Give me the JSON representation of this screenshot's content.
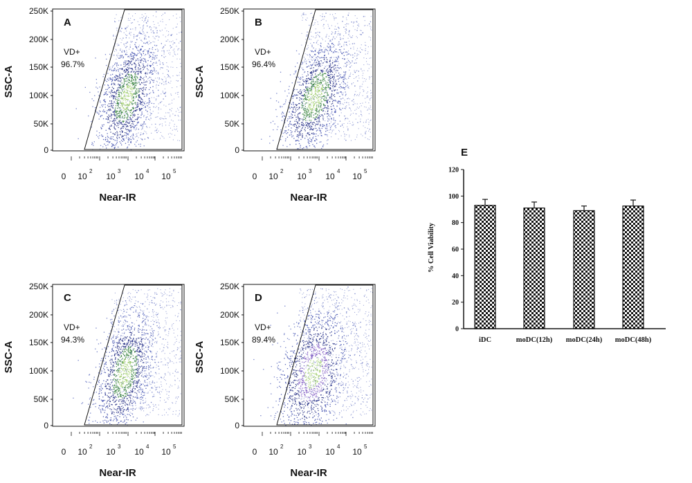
{
  "chart_data": [
    {
      "panel": "A",
      "type": "scatter",
      "xlabel": "Near-IR",
      "ylabel": "SSC-A",
      "x_tick_labels": [
        "0",
        "10",
        "2",
        "10",
        "3",
        "10",
        "4",
        "10",
        "5"
      ],
      "y_tick_labels": [
        "0",
        "50K",
        "100K",
        "150K",
        "200K",
        "250K"
      ],
      "ylim": [
        0,
        262144
      ],
      "gate": {
        "name": "VD+",
        "percent": "96.7%"
      },
      "colors": [
        "#1a237e",
        "#3949ab",
        "#5c6bc0",
        "#2e7d32",
        "#9ccc65"
      ]
    },
    {
      "panel": "B",
      "type": "scatter",
      "xlabel": "Near-IR",
      "ylabel": "SSC-A",
      "x_tick_labels": [
        "0",
        "10",
        "2",
        "10",
        "3",
        "10",
        "4",
        "10",
        "5"
      ],
      "y_tick_labels": [
        "0",
        "50K",
        "100K",
        "150K",
        "200K",
        "250K"
      ],
      "ylim": [
        0,
        262144
      ],
      "gate": {
        "name": "VD+",
        "percent": "96.4%"
      },
      "colors": [
        "#1a237e",
        "#3949ab",
        "#5c6bc0",
        "#2e7d32",
        "#9ccc65"
      ]
    },
    {
      "panel": "C",
      "type": "scatter",
      "xlabel": "Near-IR",
      "ylabel": "SSC-A",
      "x_tick_labels": [
        "0",
        "10",
        "2",
        "10",
        "3",
        "10",
        "4",
        "10",
        "5"
      ],
      "y_tick_labels": [
        "0",
        "50K",
        "100K",
        "150K",
        "200K",
        "250K"
      ],
      "ylim": [
        0,
        262144
      ],
      "gate": {
        "name": "VD+",
        "percent": "94.3%"
      },
      "colors": [
        "#1a237e",
        "#3949ab",
        "#5c6bc0",
        "#2e7d32",
        "#9ccc65"
      ]
    },
    {
      "panel": "D",
      "type": "scatter",
      "xlabel": "Near-IR",
      "ylabel": "SSC-A",
      "x_tick_labels": [
        "0",
        "10",
        "2",
        "10",
        "3",
        "10",
        "4",
        "10",
        "5"
      ],
      "y_tick_labels": [
        "0",
        "50K",
        "100K",
        "150K",
        "200K",
        "250K"
      ],
      "ylim": [
        0,
        262144
      ],
      "gate": {
        "name": "VD+",
        "percent": "89.4%"
      },
      "colors": [
        "#1a237e",
        "#3949ab",
        "#5c6bc0",
        "#7e57c2",
        "#9ccc65"
      ]
    },
    {
      "panel": "E",
      "type": "bar",
      "ylabel": "% Cell Viability",
      "categories": [
        "iDC",
        "moDC(12h)",
        "moDC(24h)",
        "moDC(48h)"
      ],
      "values": [
        93,
        91,
        89,
        92.5
      ],
      "errors": [
        4.5,
        4.5,
        3.5,
        4.5
      ],
      "yticks": [
        "0",
        "20",
        "40",
        "60",
        "80",
        "100",
        "120"
      ],
      "ylim": [
        0,
        120
      ],
      "bar_pattern": "checkerboard",
      "colors": {
        "checker_dark": "#111111",
        "checker_light": "#ffffff"
      }
    }
  ]
}
